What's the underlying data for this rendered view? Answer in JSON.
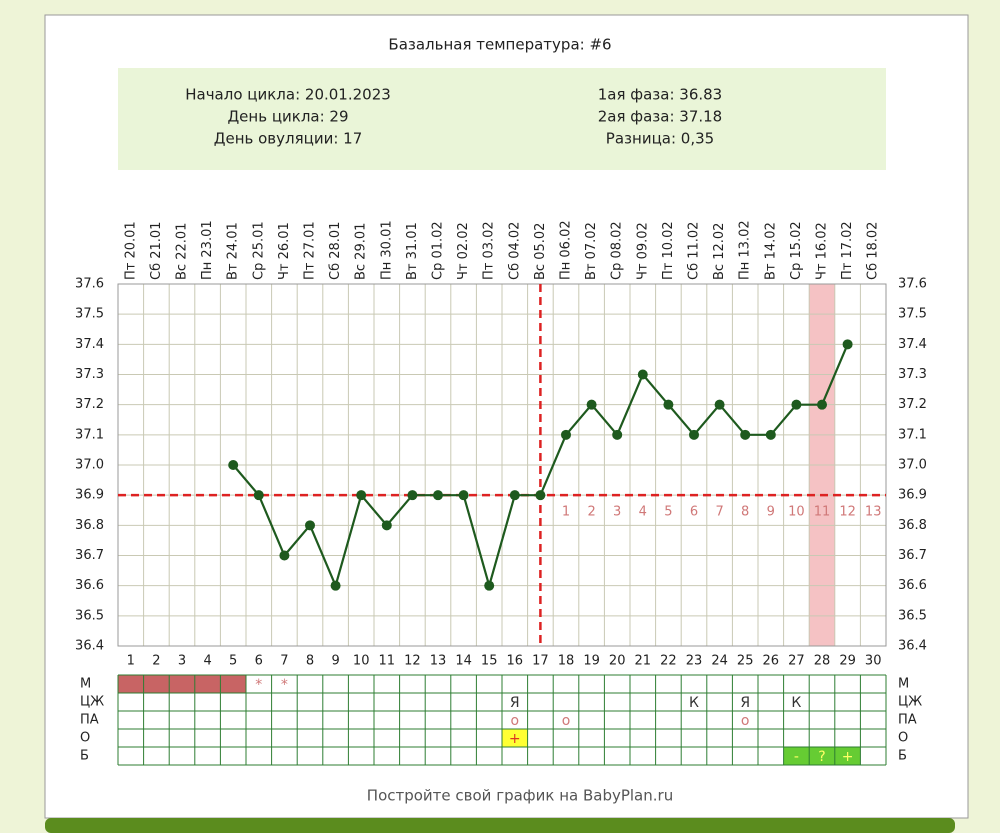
{
  "chart_data": {
    "type": "line",
    "title": "Базальная температура: #6",
    "info": {
      "left": [
        "Начало цикла: 20.01.2023",
        "День цикла: 29",
        "День овуляции: 17"
      ],
      "right": [
        "1ая фаза: 36.83",
        "2ая фаза: 37.18",
        "Разница: 0,35"
      ]
    },
    "categories": [
      "Пт 20.01",
      "Сб 21.01",
      "Вс 22.01",
      "Пн 23.01",
      "Вт 24.01",
      "Ср 25.01",
      "Чт 26.01",
      "Пт 27.01",
      "Сб 28.01",
      "Вс 29.01",
      "Пн 30.01",
      "Вт 31.01",
      "Ср 01.02",
      "Чт 02.02",
      "Пт 03.02",
      "Сб 04.02",
      "Вс 05.02",
      "Пн 06.02",
      "Вт 07.02",
      "Ср 08.02",
      "Чт 09.02",
      "Пт 10.02",
      "Сб 11.02",
      "Вс 12.02",
      "Пн 13.02",
      "Вт 14.02",
      "Ср 15.02",
      "Чт 16.02",
      "Пт 17.02",
      "Сб 18.02"
    ],
    "x": [
      1,
      2,
      3,
      4,
      5,
      6,
      7,
      8,
      9,
      10,
      11,
      12,
      13,
      14,
      15,
      16,
      17,
      18,
      19,
      20,
      21,
      22,
      23,
      24,
      25,
      26,
      27,
      28,
      29,
      30
    ],
    "xlim": [
      0.5,
      30.5
    ],
    "values": [
      null,
      null,
      null,
      null,
      37.0,
      36.9,
      36.7,
      36.8,
      36.6,
      36.9,
      36.8,
      36.9,
      36.9,
      36.9,
      36.6,
      36.9,
      36.9,
      37.1,
      37.2,
      37.1,
      37.3,
      37.2,
      37.1,
      37.2,
      37.1,
      37.1,
      37.2,
      37.2,
      37.4,
      null
    ],
    "color": "#1e5a1e",
    "ylim": [
      36.4,
      37.6
    ],
    "yticks": [
      36.4,
      36.5,
      36.6,
      36.7,
      36.8,
      36.9,
      {
        "value": 37.0,
        "label": "37.0"
      },
      37.1,
      37.2,
      37.3,
      37.4,
      37.5,
      37.6
    ],
    "grid": true,
    "coverline": 36.9,
    "ovulation_day": 17,
    "line_color": "#dd2222",
    "phase_numbers": [
      1,
      2,
      3,
      4,
      5,
      6,
      7,
      8,
      9,
      10,
      11,
      12,
      13
    ],
    "highlight_day": 28,
    "highlight_color": "#f5c2c4"
  },
  "table": {
    "rows": [
      {
        "label": "М",
        "cells": [
          {
            "day": 1,
            "fill": "#c86464"
          },
          {
            "day": 2,
            "fill": "#c86464"
          },
          {
            "day": 3,
            "fill": "#c86464"
          },
          {
            "day": 4,
            "fill": "#c86464"
          },
          {
            "day": 5,
            "fill": "#c86464"
          },
          {
            "day": 6,
            "text": "*",
            "color": "#d07878"
          },
          {
            "day": 7,
            "text": "*",
            "color": "#d07878"
          }
        ]
      },
      {
        "label": "ЦЖ",
        "cells": [
          {
            "day": 16,
            "text": "Я",
            "color": "#333333"
          },
          {
            "day": 23,
            "text": "К",
            "color": "#333333"
          },
          {
            "day": 25,
            "text": "Я",
            "color": "#333333"
          },
          {
            "day": 27,
            "text": "К",
            "color": "#333333"
          }
        ]
      },
      {
        "label": "ПА",
        "cells": [
          {
            "day": 16,
            "text": "o",
            "color": "#d07878"
          },
          {
            "day": 18,
            "text": "o",
            "color": "#d07878"
          },
          {
            "day": 25,
            "text": "o",
            "color": "#d07878"
          }
        ]
      },
      {
        "label": "О",
        "cells": [
          {
            "day": 16,
            "text": "+",
            "color": "#dd3322",
            "fill": "#ffff33"
          }
        ]
      },
      {
        "label": "Б",
        "cells": [
          {
            "day": 27,
            "text": "-",
            "color": "#ffff66",
            "fill": "#66cc33"
          },
          {
            "day": 28,
            "text": "?",
            "color": "#ffff66",
            "fill": "#66cc33"
          },
          {
            "day": 29,
            "text": "+",
            "color": "#ffff66",
            "fill": "#66cc33"
          }
        ]
      }
    ]
  },
  "footer": "Постройте свой график на BabyPlan.ru"
}
